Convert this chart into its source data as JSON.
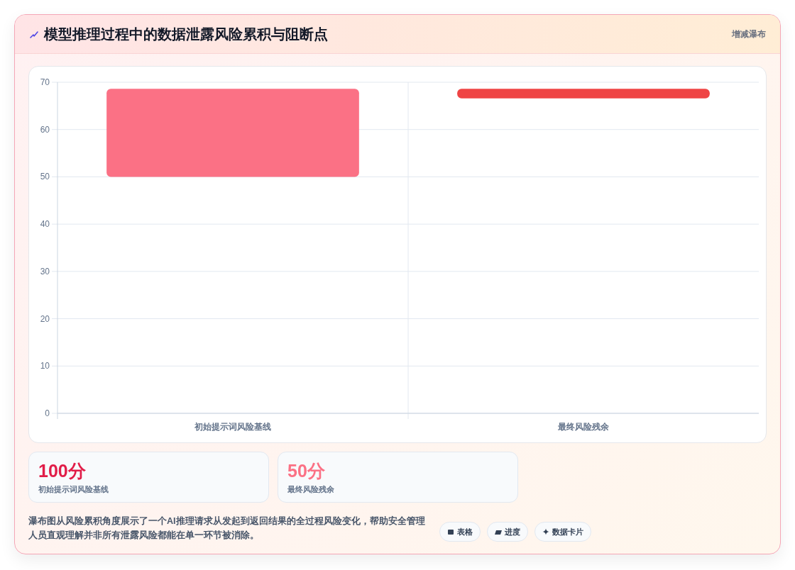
{
  "chart_data": {
    "type": "bar",
    "title": "模型推理过程中的数据泄露风险累积与阻断点",
    "categories": [
      "初始提示词风险基线",
      "最终风险残余"
    ],
    "base": [
      50,
      66.6
    ],
    "values": [
      18.6,
      2
    ],
    "colors": [
      "#fb7185",
      "#ef4444"
    ],
    "ylim": [
      0,
      70
    ],
    "yticks": [
      0,
      10,
      20,
      30,
      40,
      50,
      60,
      70
    ],
    "grid": true,
    "annotations": [
      "增减瀑布",
      "100分",
      "初始提示词风险基线",
      "50分",
      "最终风险残余",
      "瀑布图从风险累积角度展示了一个AI推理请求从发起到返回结果的全过程风险变化，帮助安全管理人员直观理解并非所有泄露风险都能在单一环节被消除。",
      "表格",
      "进度",
      "数据卡片"
    ]
  }
}
